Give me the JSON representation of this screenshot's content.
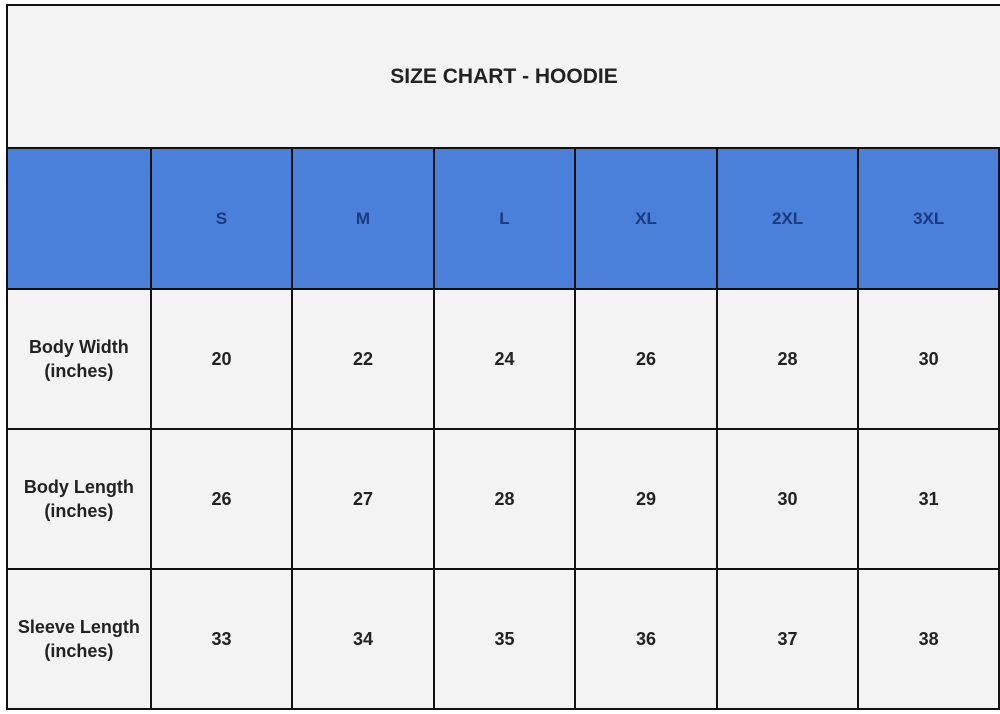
{
  "title": "SIZE CHART - HOODIE",
  "colors": {
    "header_bg": "#4a7fda",
    "header_text": "#1c3a80",
    "cell_bg": "#f3f3f3"
  },
  "chart_data": {
    "type": "table",
    "title": "SIZE CHART - HOODIE",
    "columns": [
      "",
      "S",
      "M",
      "L",
      "XL",
      "2XL",
      "3XL"
    ],
    "rows": [
      {
        "label": "Body Width",
        "unit": "(inches)",
        "values": [
          "20",
          "22",
          "24",
          "26",
          "28",
          "30"
        ]
      },
      {
        "label": "Body Length",
        "unit": "(inches)",
        "values": [
          "26",
          "27",
          "28",
          "29",
          "30",
          "31"
        ]
      },
      {
        "label": "Sleeve Length",
        "unit": "(inches)",
        "values": [
          "33",
          "34",
          "35",
          "36",
          "37",
          "38"
        ]
      }
    ]
  }
}
